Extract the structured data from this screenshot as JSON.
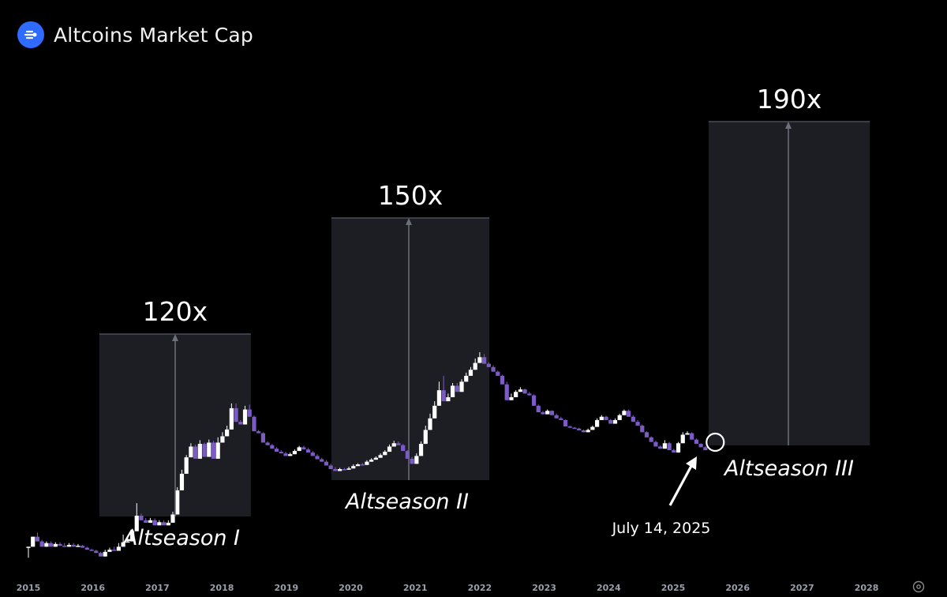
{
  "header": {
    "title": "Altcoins Market Cap",
    "logo_icon": "stream-logo-icon"
  },
  "chart_data": {
    "type": "candlestick",
    "title": "Altcoins Market Cap",
    "x_ticks": [
      "2015",
      "2016",
      "2017",
      "2018",
      "2019",
      "2020",
      "2021",
      "2022",
      "2023",
      "2024",
      "2025",
      "2026",
      "2027",
      "2028"
    ],
    "y_scale": "log",
    "colors": {
      "up": "#ffffff",
      "down": "#7c5cc4",
      "box": "#1c1e24",
      "background": "#000000"
    },
    "seasons": [
      {
        "label": "Altseason I",
        "multiplier": "120x",
        "start": 2016.1,
        "end": 2018.45
      },
      {
        "label": "Altseason II",
        "multiplier": "150x",
        "start": 2019.7,
        "end": 2022.15
      },
      {
        "label": "Altseason III",
        "multiplier": "190x",
        "start": 2025.55,
        "end": 2028.05
      }
    ],
    "annotation": {
      "label": "July 14, 2025",
      "x": 2025.53
    },
    "series": [
      {
        "values": [
          [
            2015.0,
            0.4,
            0.4,
            0.3
          ],
          [
            2015.07,
            0.4,
            0.52,
            0.45
          ],
          [
            2015.14,
            0.52,
            0.46,
            0.58
          ],
          [
            2015.21,
            0.46,
            0.4,
            0.48
          ],
          [
            2015.28,
            0.4,
            0.44,
            0.46
          ],
          [
            2015.35,
            0.44,
            0.4,
            0.46
          ],
          [
            2015.42,
            0.4,
            0.43,
            0.45
          ],
          [
            2015.49,
            0.43,
            0.41,
            0.45
          ],
          [
            2015.56,
            0.41,
            0.4,
            0.44
          ],
          [
            2015.63,
            0.4,
            0.42,
            0.44
          ],
          [
            2015.7,
            0.42,
            0.4,
            0.44
          ],
          [
            2015.77,
            0.4,
            0.41,
            0.43
          ],
          [
            2015.84,
            0.41,
            0.39,
            0.42
          ],
          [
            2015.91,
            0.39,
            0.37,
            0.4
          ],
          [
            2015.98,
            0.37,
            0.36,
            0.38
          ],
          [
            2016.05,
            0.36,
            0.34,
            0.37
          ],
          [
            2016.12,
            0.34,
            0.31,
            0.35
          ],
          [
            2016.19,
            0.31,
            0.35,
            0.37
          ],
          [
            2016.26,
            0.35,
            0.37,
            0.39
          ],
          [
            2016.33,
            0.37,
            0.36,
            0.4
          ],
          [
            2016.4,
            0.36,
            0.4,
            0.44
          ],
          [
            2016.47,
            0.4,
            0.45,
            0.55
          ],
          [
            2016.54,
            0.45,
            0.46,
            0.5
          ],
          [
            2016.61,
            0.46,
            0.6,
            0.64
          ],
          [
            2016.68,
            0.6,
            0.9,
            1.25
          ],
          [
            2016.75,
            0.9,
            0.8,
            0.95
          ],
          [
            2016.82,
            0.8,
            0.75,
            0.85
          ],
          [
            2016.89,
            0.75,
            0.8,
            0.85
          ],
          [
            2016.96,
            0.8,
            0.7,
            0.84
          ],
          [
            2017.03,
            0.7,
            0.76,
            0.8
          ],
          [
            2017.1,
            0.76,
            0.7,
            0.8
          ],
          [
            2017.17,
            0.7,
            0.75,
            0.8
          ],
          [
            2017.24,
            0.75,
            0.93,
            1.0
          ],
          [
            2017.31,
            0.93,
            1.75,
            1.9
          ],
          [
            2017.38,
            1.75,
            2.7,
            3.0
          ],
          [
            2017.45,
            2.7,
            4.15,
            4.4
          ],
          [
            2017.52,
            4.15,
            5.5,
            6.0
          ],
          [
            2017.59,
            5.5,
            4.0,
            5.8
          ],
          [
            2017.66,
            4.0,
            5.9,
            6.5
          ],
          [
            2017.73,
            5.9,
            4.2,
            6.1
          ],
          [
            2017.8,
            4.2,
            6.1,
            6.6
          ],
          [
            2017.87,
            6.1,
            4.0,
            6.4
          ],
          [
            2017.94,
            4.0,
            6.1,
            7.0
          ],
          [
            2018.01,
            6.1,
            7.2,
            8.0
          ],
          [
            2018.08,
            7.2,
            8.6,
            9.5
          ],
          [
            2018.15,
            8.6,
            15.0,
            17.0
          ],
          [
            2018.22,
            15.0,
            10.5,
            17.0
          ],
          [
            2018.29,
            10.5,
            9.8,
            11.0
          ],
          [
            2018.36,
            9.8,
            14.5,
            16.0
          ],
          [
            2018.43,
            14.5,
            12.0,
            16.5
          ],
          [
            2018.5,
            12.0,
            8.2,
            12.4
          ],
          [
            2018.57,
            8.2,
            7.8,
            8.5
          ],
          [
            2018.64,
            7.8,
            6.1,
            8.0
          ],
          [
            2018.71,
            6.1,
            5.7,
            6.3
          ],
          [
            2018.78,
            5.7,
            5.2,
            5.9
          ],
          [
            2018.85,
            5.2,
            4.8,
            5.4
          ],
          [
            2018.92,
            4.8,
            4.6,
            5.0
          ],
          [
            2018.99,
            4.6,
            4.3,
            4.8
          ],
          [
            2019.06,
            4.3,
            4.5,
            4.7
          ],
          [
            2019.13,
            4.5,
            4.9,
            5.1
          ],
          [
            2019.2,
            4.9,
            5.4,
            5.6
          ],
          [
            2019.27,
            5.4,
            5.1,
            5.6
          ],
          [
            2019.34,
            5.1,
            4.7,
            5.3
          ],
          [
            2019.41,
            4.7,
            4.3,
            4.9
          ],
          [
            2019.48,
            4.3,
            3.95,
            4.5
          ],
          [
            2019.55,
            3.95,
            3.7,
            4.1
          ],
          [
            2019.62,
            3.7,
            3.35,
            3.85
          ],
          [
            2019.69,
            3.35,
            3.05,
            3.5
          ],
          [
            2019.76,
            3.05,
            2.9,
            3.2
          ],
          [
            2019.83,
            2.9,
            3.05,
            3.15
          ],
          [
            2019.9,
            3.05,
            3.0,
            3.15
          ],
          [
            2019.97,
            3.0,
            3.1,
            3.25
          ],
          [
            2020.04,
            3.1,
            3.3,
            3.45
          ],
          [
            2020.11,
            3.3,
            3.45,
            3.55
          ],
          [
            2020.18,
            3.45,
            3.4,
            3.6
          ],
          [
            2020.25,
            3.4,
            3.7,
            3.85
          ],
          [
            2020.32,
            3.7,
            3.9,
            4.05
          ],
          [
            2020.39,
            3.9,
            4.1,
            4.25
          ],
          [
            2020.46,
            4.1,
            4.4,
            4.6
          ],
          [
            2020.53,
            4.4,
            4.8,
            5.0
          ],
          [
            2020.6,
            4.8,
            5.5,
            5.8
          ],
          [
            2020.67,
            5.5,
            6.0,
            6.4
          ],
          [
            2020.74,
            6.0,
            5.7,
            6.3
          ],
          [
            2020.81,
            5.7,
            4.9,
            5.9
          ],
          [
            2020.88,
            4.9,
            4.0,
            5.0
          ],
          [
            2020.95,
            4.0,
            3.5,
            4.2
          ],
          [
            2021.02,
            3.5,
            4.3,
            4.6
          ],
          [
            2021.09,
            4.3,
            5.9,
            6.3
          ],
          [
            2021.16,
            5.9,
            8.5,
            9.5
          ],
          [
            2021.23,
            8.5,
            11.5,
            13.0
          ],
          [
            2021.3,
            11.5,
            16.0,
            18.0
          ],
          [
            2021.37,
            16.0,
            24.0,
            30.0
          ],
          [
            2021.44,
            24.0,
            18.0,
            35.0
          ],
          [
            2021.51,
            18.0,
            20.0,
            22.0
          ],
          [
            2021.58,
            20.0,
            27.0,
            29.0
          ],
          [
            2021.65,
            27.0,
            23.0,
            29.0
          ],
          [
            2021.72,
            23.0,
            30.0,
            32.0
          ],
          [
            2021.79,
            30.0,
            35.0,
            38.0
          ],
          [
            2021.86,
            35.0,
            41.0,
            44.0
          ],
          [
            2021.93,
            41.0,
            49.0,
            55.0
          ],
          [
            2022.0,
            49.0,
            57.0,
            65.0
          ],
          [
            2022.07,
            57.0,
            48.0,
            62.0
          ],
          [
            2022.14,
            48.0,
            44.0,
            50.0
          ],
          [
            2022.21,
            44.0,
            39.0,
            46.0
          ],
          [
            2022.28,
            39.0,
            35.0,
            40.0
          ],
          [
            2022.35,
            35.0,
            28.0,
            36.0
          ],
          [
            2022.42,
            28.0,
            18.5,
            30.0
          ],
          [
            2022.49,
            18.5,
            20.0,
            22.0
          ],
          [
            2022.56,
            20.0,
            23.0,
            24.0
          ],
          [
            2022.63,
            23.0,
            24.5,
            26.0
          ],
          [
            2022.7,
            24.5,
            22.0,
            25.0
          ],
          [
            2022.77,
            22.0,
            21.0,
            23.0
          ],
          [
            2022.84,
            21.0,
            16.0,
            21.5
          ],
          [
            2022.91,
            16.0,
            13.5,
            16.5
          ],
          [
            2022.98,
            13.5,
            12.8,
            14.0
          ],
          [
            2023.05,
            12.8,
            14.0,
            14.5
          ],
          [
            2023.12,
            14.0,
            12.5,
            14.2
          ],
          [
            2023.19,
            12.5,
            11.5,
            13.0
          ],
          [
            2023.26,
            11.5,
            11.0,
            12.0
          ],
          [
            2023.33,
            11.0,
            9.3,
            11.2
          ],
          [
            2023.4,
            9.3,
            9.0,
            9.5
          ],
          [
            2023.47,
            9.0,
            8.8,
            9.2
          ],
          [
            2023.54,
            8.8,
            8.4,
            9.0
          ],
          [
            2023.61,
            8.4,
            8.0,
            8.6
          ],
          [
            2023.68,
            8.0,
            8.5,
            8.8
          ],
          [
            2023.75,
            8.5,
            9.2,
            9.5
          ],
          [
            2023.82,
            9.2,
            11.0,
            11.5
          ],
          [
            2023.89,
            11.0,
            12.0,
            12.5
          ],
          [
            2023.96,
            12.0,
            11.0,
            12.3
          ],
          [
            2024.03,
            11.0,
            10.0,
            11.3
          ],
          [
            2024.1,
            10.0,
            11.0,
            11.5
          ],
          [
            2024.17,
            11.0,
            12.5,
            13.0
          ],
          [
            2024.24,
            12.5,
            14.0,
            14.5
          ],
          [
            2024.31,
            14.0,
            12.0,
            14.5
          ],
          [
            2024.38,
            12.0,
            10.5,
            12.5
          ],
          [
            2024.45,
            10.5,
            9.5,
            11.0
          ],
          [
            2024.52,
            9.5,
            8.0,
            9.8
          ],
          [
            2024.59,
            8.0,
            7.0,
            8.2
          ],
          [
            2024.66,
            7.0,
            6.2,
            7.2
          ],
          [
            2024.73,
            6.2,
            5.5,
            6.4
          ],
          [
            2024.8,
            5.5,
            5.2,
            5.7
          ],
          [
            2024.87,
            5.2,
            6.0,
            6.5
          ],
          [
            2024.94,
            6.0,
            5.0,
            6.2
          ],
          [
            2025.01,
            5.0,
            4.7,
            5.2
          ],
          [
            2025.08,
            4.7,
            6.0,
            6.2
          ],
          [
            2025.15,
            6.0,
            7.5,
            8.0
          ],
          [
            2025.22,
            7.5,
            7.8,
            8.2
          ],
          [
            2025.29,
            7.8,
            6.6,
            8.0
          ],
          [
            2025.36,
            6.6,
            5.9,
            6.8
          ],
          [
            2025.43,
            5.9,
            5.4,
            6.0
          ],
          [
            2025.5,
            5.4,
            5.0,
            5.6
          ]
        ]
      }
    ]
  }
}
